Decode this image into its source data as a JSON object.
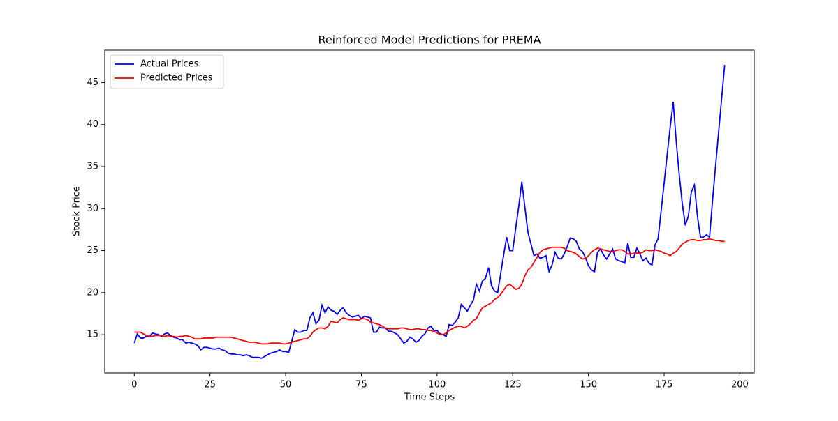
{
  "chart_data": {
    "type": "line",
    "title": "Reinforced Model Predictions for PREMA",
    "x_label": "Time Steps",
    "y_label": "Stock Price",
    "x": [
      0,
      1,
      2,
      3,
      4,
      5,
      6,
      7,
      8,
      9,
      10,
      11,
      12,
      13,
      14,
      15,
      16,
      17,
      18,
      19,
      20,
      21,
      22,
      23,
      24,
      25,
      26,
      27,
      28,
      29,
      30,
      31,
      32,
      33,
      34,
      35,
      36,
      37,
      38,
      39,
      40,
      41,
      42,
      43,
      44,
      45,
      46,
      47,
      48,
      49,
      50,
      51,
      52,
      53,
      54,
      55,
      56,
      57,
      58,
      59,
      60,
      61,
      62,
      63,
      64,
      65,
      66,
      67,
      68,
      69,
      70,
      71,
      72,
      73,
      74,
      75,
      76,
      77,
      78,
      79,
      80,
      81,
      82,
      83,
      84,
      85,
      86,
      87,
      88,
      89,
      90,
      91,
      92,
      93,
      94,
      95,
      96,
      97,
      98,
      99,
      100,
      101,
      102,
      103,
      104,
      105,
      106,
      107,
      108,
      109,
      110,
      111,
      112,
      113,
      114,
      115,
      116,
      117,
      118,
      119,
      120,
      121,
      122,
      123,
      124,
      125,
      126,
      127,
      128,
      129,
      130,
      131,
      132,
      133,
      134,
      135,
      136,
      137,
      138,
      139,
      140,
      141,
      142,
      143,
      144,
      145,
      146,
      147,
      148,
      149,
      150,
      151,
      152,
      153,
      154,
      155,
      156,
      157,
      158,
      159,
      160,
      161,
      162,
      163,
      164,
      165,
      166,
      167,
      168,
      169,
      170,
      171,
      172,
      173,
      174,
      175,
      176,
      177,
      178,
      179,
      180,
      181,
      182,
      183,
      184,
      185,
      186,
      187,
      188,
      189,
      190,
      191,
      192,
      193,
      194,
      195
    ],
    "series": [
      {
        "name": "Actual Prices",
        "color": "#0000ff",
        "values": [
          14.0,
          15.1,
          14.6,
          14.6,
          14.8,
          14.8,
          15.2,
          15.1,
          15.0,
          14.8,
          15.1,
          15.2,
          14.9,
          14.7,
          14.6,
          14.4,
          14.4,
          14.0,
          14.1,
          14.0,
          13.9,
          13.7,
          13.2,
          13.5,
          13.5,
          13.4,
          13.3,
          13.3,
          13.4,
          13.2,
          13.1,
          12.8,
          12.7,
          12.7,
          12.6,
          12.6,
          12.5,
          12.6,
          12.5,
          12.3,
          12.3,
          12.3,
          12.2,
          12.4,
          12.6,
          12.8,
          12.9,
          13.0,
          13.2,
          13.0,
          13.0,
          12.9,
          14.2,
          15.6,
          15.3,
          15.3,
          15.5,
          15.5,
          17.0,
          17.6,
          16.3,
          16.7,
          18.5,
          17.6,
          18.3,
          17.9,
          17.8,
          17.4,
          17.9,
          18.2,
          17.6,
          17.3,
          17.1,
          17.2,
          17.3,
          16.9,
          17.2,
          17.1,
          17.0,
          15.3,
          15.3,
          15.9,
          15.8,
          15.8,
          15.4,
          15.4,
          15.2,
          15.0,
          14.5,
          14.0,
          14.2,
          14.7,
          14.5,
          14.1,
          14.3,
          14.8,
          15.1,
          15.8,
          16.0,
          15.5,
          15.5,
          15.1,
          15.0,
          14.8,
          16.2,
          16.1,
          16.5,
          17.0,
          18.6,
          18.2,
          17.8,
          18.5,
          19.1,
          21.0,
          20.2,
          21.4,
          21.7,
          23.0,
          20.8,
          20.2,
          20.0,
          22.2,
          24.5,
          26.6,
          25.0,
          25.0,
          27.7,
          30.3,
          33.2,
          30.2,
          27.2,
          25.8,
          24.4,
          24.6,
          24.1,
          24.2,
          24.4,
          22.5,
          23.3,
          24.8,
          24.1,
          24.0,
          24.6,
          25.5,
          26.5,
          26.4,
          26.1,
          25.2,
          24.9,
          24.2,
          23.2,
          22.7,
          22.5,
          24.8,
          25.2,
          24.5,
          24.0,
          24.6,
          25.2,
          24.0,
          23.8,
          23.7,
          23.5,
          25.9,
          24.2,
          24.2,
          25.3,
          24.6,
          23.8,
          24.1,
          23.5,
          23.3,
          25.7,
          26.4,
          29.7,
          33.0,
          36.4,
          39.7,
          42.7,
          38.0,
          34.0,
          30.6,
          28.0,
          29.1,
          32.0,
          32.8,
          29.1,
          26.6,
          26.6,
          26.9,
          26.6,
          31.0,
          35.1,
          39.1,
          43.1,
          47.1
        ]
      },
      {
        "name": "Predicted Prices",
        "color": "#ff0000",
        "values": [
          15.3,
          15.3,
          15.3,
          15.1,
          14.9,
          14.8,
          14.8,
          14.9,
          14.9,
          14.9,
          14.8,
          14.9,
          14.8,
          14.8,
          14.7,
          14.8,
          14.8,
          14.9,
          14.8,
          14.7,
          14.5,
          14.5,
          14.5,
          14.6,
          14.6,
          14.6,
          14.6,
          14.7,
          14.7,
          14.7,
          14.7,
          14.7,
          14.7,
          14.6,
          14.5,
          14.4,
          14.3,
          14.2,
          14.1,
          14.1,
          14.1,
          14.0,
          13.9,
          13.9,
          13.9,
          14.0,
          14.0,
          14.0,
          14.0,
          13.9,
          13.9,
          14.0,
          14.1,
          14.2,
          14.3,
          14.4,
          14.5,
          14.5,
          14.8,
          15.3,
          15.6,
          15.8,
          15.8,
          15.7,
          16.0,
          16.6,
          16.5,
          16.4,
          16.8,
          17.0,
          16.9,
          16.8,
          16.8,
          16.8,
          16.7,
          16.9,
          16.9,
          16.8,
          16.5,
          16.4,
          16.3,
          16.2,
          16.0,
          15.8,
          15.7,
          15.7,
          15.7,
          15.7,
          15.8,
          15.8,
          15.7,
          15.6,
          15.6,
          15.7,
          15.7,
          15.6,
          15.6,
          15.5,
          15.5,
          15.4,
          15.2,
          15.0,
          15.0,
          15.2,
          15.5,
          15.7,
          15.9,
          16.0,
          16.0,
          15.8,
          16.0,
          16.3,
          16.7,
          16.9,
          17.6,
          18.2,
          18.4,
          18.6,
          18.8,
          19.2,
          19.4,
          19.8,
          20.3,
          20.8,
          21.0,
          20.7,
          20.4,
          20.5,
          21.0,
          22.0,
          22.7,
          23.0,
          23.6,
          24.2,
          24.8,
          25.1,
          25.2,
          25.3,
          25.4,
          25.4,
          25.4,
          25.4,
          25.3,
          25.0,
          24.9,
          24.8,
          24.6,
          24.3,
          24.0,
          24.1,
          24.4,
          24.8,
          25.1,
          25.3,
          25.2,
          25.1,
          25.0,
          24.9,
          24.9,
          25.0,
          25.1,
          25.1,
          24.9,
          24.6,
          24.6,
          24.7,
          24.7,
          24.7,
          24.8,
          25.1,
          25.0,
          25.0,
          25.1,
          25.0,
          24.9,
          24.7,
          24.6,
          24.4,
          24.7,
          24.9,
          25.3,
          25.8,
          26.0,
          26.2,
          26.3,
          26.3,
          26.2,
          26.2,
          26.3,
          26.3,
          26.4,
          26.3,
          26.2,
          26.2,
          26.1,
          26.1
        ]
      }
    ],
    "xlim": [
      -9.75,
      204.75
    ],
    "ylim": [
      10.45,
      48.85
    ],
    "xticks": [
      0,
      25,
      50,
      75,
      100,
      125,
      150,
      175,
      200
    ],
    "yticks": [
      15,
      20,
      25,
      30,
      35,
      40,
      45
    ],
    "legend": "upper left"
  }
}
